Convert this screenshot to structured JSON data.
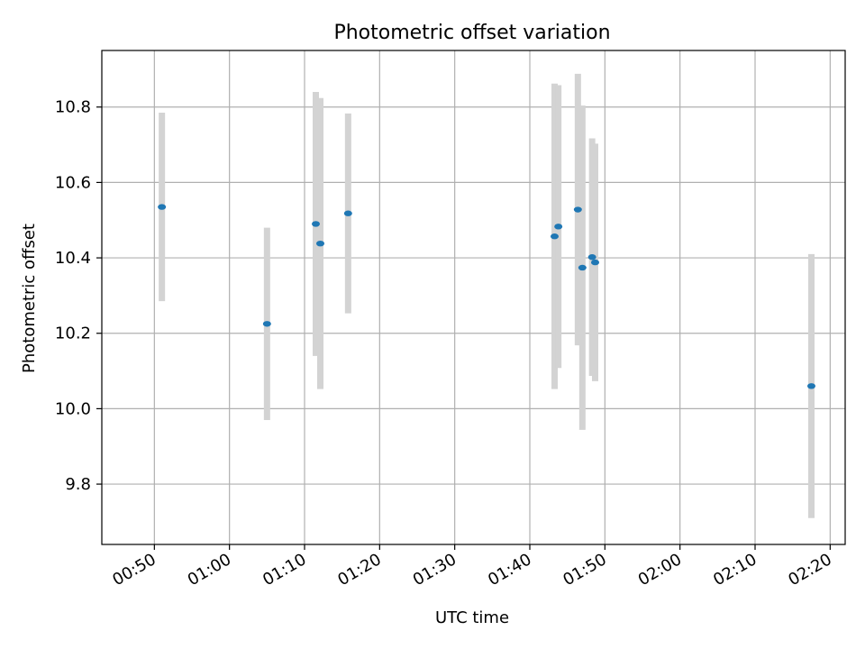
{
  "chart_data": {
    "type": "scatter",
    "title": "Photometric offset variation",
    "xlabel": "UTC time",
    "ylabel": "Photometric offset",
    "x_unit": "UTC time (HH:MM)",
    "xlim": [
      "00:43",
      "02:22"
    ],
    "ylim": [
      9.64,
      10.95
    ],
    "grid": true,
    "x_ticks": [
      "00:50",
      "01:00",
      "01:10",
      "01:20",
      "01:30",
      "01:40",
      "01:50",
      "02:00",
      "02:10",
      "02:20"
    ],
    "y_ticks": [
      "9.8",
      "10.0",
      "10.2",
      "10.4",
      "10.6",
      "10.8"
    ],
    "colors": {
      "point": "#1f77b4",
      "errorbar": "#d3d3d3",
      "grid": "#b0b0b0"
    },
    "series": [
      {
        "points": [
          {
            "x": "00:51:00",
            "y": 10.535,
            "yerr": 0.25
          },
          {
            "x": "01:05:00",
            "y": 10.225,
            "yerr": 0.255
          },
          {
            "x": "01:11:30",
            "y": 10.49,
            "yerr": 0.35
          },
          {
            "x": "01:12:06",
            "y": 10.438,
            "yerr": 0.386
          },
          {
            "x": "01:15:48",
            "y": 10.518,
            "yerr": 0.265
          },
          {
            "x": "01:43:18",
            "y": 10.457,
            "yerr": 0.405
          },
          {
            "x": "01:43:48",
            "y": 10.483,
            "yerr": 0.375
          },
          {
            "x": "01:46:24",
            "y": 10.528,
            "yerr": 0.36
          },
          {
            "x": "01:47:00",
            "y": 10.374,
            "yerr": 0.43
          },
          {
            "x": "01:48:18",
            "y": 10.402,
            "yerr": 0.315
          },
          {
            "x": "01:48:42",
            "y": 10.388,
            "yerr": 0.315
          },
          {
            "x": "02:17:30",
            "y": 10.06,
            "yerr": 0.35
          }
        ]
      }
    ]
  }
}
